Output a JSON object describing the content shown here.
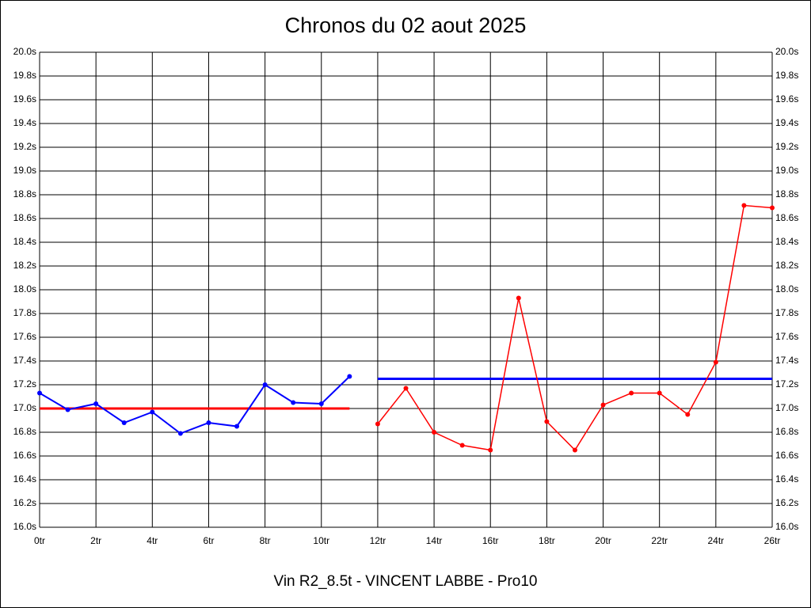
{
  "chart_data": {
    "type": "line",
    "title": "Chronos du 02 aout 2025",
    "footer": "Vin R2_8.5t - VINCENT LABBE - Pro10",
    "xlim": [
      0,
      26
    ],
    "xticks": [
      {
        "value": 0,
        "label": "0tr"
      },
      {
        "value": 2,
        "label": "2tr"
      },
      {
        "value": 4,
        "label": "4tr"
      },
      {
        "value": 6,
        "label": "6tr"
      },
      {
        "value": 8,
        "label": "8tr"
      },
      {
        "value": 10,
        "label": "10tr"
      },
      {
        "value": 12,
        "label": "12tr"
      },
      {
        "value": 14,
        "label": "14tr"
      },
      {
        "value": 16,
        "label": "16tr"
      },
      {
        "value": 18,
        "label": "18tr"
      },
      {
        "value": 20,
        "label": "20tr"
      },
      {
        "value": 22,
        "label": "22tr"
      },
      {
        "value": 24,
        "label": "24tr"
      },
      {
        "value": 26,
        "label": "26tr"
      }
    ],
    "ylim": [
      16.0,
      20.0
    ],
    "yticks": [
      {
        "value": 16.0,
        "label": "16.0s"
      },
      {
        "value": 16.2,
        "label": "16.2s"
      },
      {
        "value": 16.4,
        "label": "16.4s"
      },
      {
        "value": 16.6,
        "label": "16.6s"
      },
      {
        "value": 16.8,
        "label": "16.8s"
      },
      {
        "value": 17.0,
        "label": "17.0s"
      },
      {
        "value": 17.2,
        "label": "17.2s"
      },
      {
        "value": 17.4,
        "label": "17.4s"
      },
      {
        "value": 17.6,
        "label": "17.6s"
      },
      {
        "value": 17.8,
        "label": "17.8s"
      },
      {
        "value": 18.0,
        "label": "18.0s"
      },
      {
        "value": 18.2,
        "label": "18.2s"
      },
      {
        "value": 18.4,
        "label": "18.4s"
      },
      {
        "value": 18.6,
        "label": "18.6s"
      },
      {
        "value": 18.8,
        "label": "18.8s"
      },
      {
        "value": 19.0,
        "label": "19.0s"
      },
      {
        "value": 19.2,
        "label": "19.2s"
      },
      {
        "value": 19.4,
        "label": "19.4s"
      },
      {
        "value": 19.6,
        "label": "19.6s"
      },
      {
        "value": 19.8,
        "label": "19.8s"
      },
      {
        "value": 20.0,
        "label": "20.0s"
      }
    ],
    "grid": true,
    "series": [
      {
        "color": "#0000ff",
        "x": [
          0,
          1,
          2,
          3,
          4,
          5,
          6,
          7,
          8,
          9,
          10,
          11
        ],
        "values": [
          17.13,
          16.99,
          17.04,
          16.88,
          16.97,
          16.79,
          16.88,
          16.85,
          17.2,
          17.05,
          17.04,
          17.27
        ]
      },
      {
        "color": "#ff0000",
        "x": [
          12,
          13,
          14,
          15,
          16,
          17,
          18,
          19,
          20,
          21,
          22,
          23,
          24,
          25,
          26
        ],
        "values": [
          16.87,
          17.17,
          16.8,
          16.69,
          16.65,
          17.93,
          16.89,
          16.65,
          17.03,
          17.13,
          17.13,
          16.95,
          17.39,
          18.71,
          18.69
        ]
      }
    ],
    "reference_lines": [
      {
        "color": "#ff0000",
        "value": 17.0,
        "from": 0,
        "to": 11
      },
      {
        "color": "#0000ff",
        "value": 17.25,
        "from": 12,
        "to": 26
      }
    ]
  }
}
